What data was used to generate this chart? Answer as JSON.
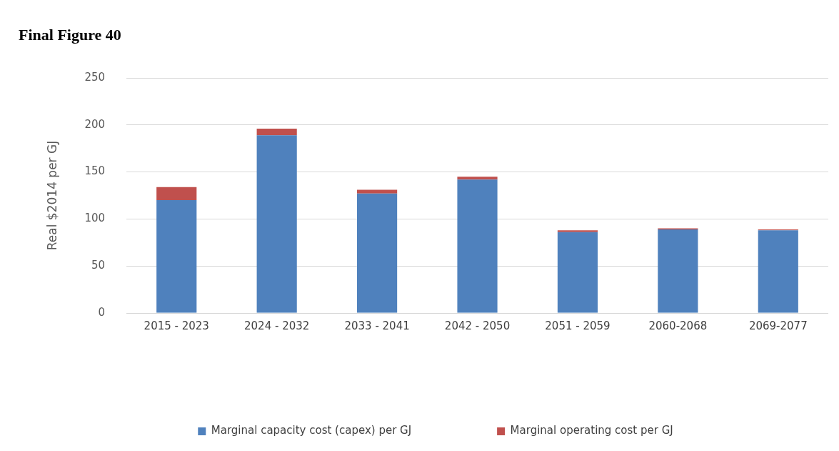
{
  "chart_data": {
    "type": "bar",
    "title": "Final Figure 40",
    "ylabel": "Real $2014 per GJ",
    "categories": [
      "2015 - 2023",
      "2024 - 2032",
      "2033 - 2041",
      "2042 - 2050",
      "2051 - 2059",
      "2060-2068",
      "2069-2077"
    ],
    "series": [
      {
        "name": "Marginal capacity cost (capex) per GJ",
        "color": "#4f81bd",
        "values": [
          120,
          189,
          127,
          142,
          86,
          89,
          88
        ]
      },
      {
        "name": "Marginal operating cost per GJ",
        "color": "#c0504d",
        "values": [
          14,
          7,
          4,
          3,
          2,
          1,
          1
        ]
      }
    ],
    "stacked": true,
    "ylim": [
      0,
      250
    ],
    "yticks": [
      0,
      50,
      100,
      150,
      200,
      250
    ],
    "grid": "y",
    "legend": "bottom"
  }
}
